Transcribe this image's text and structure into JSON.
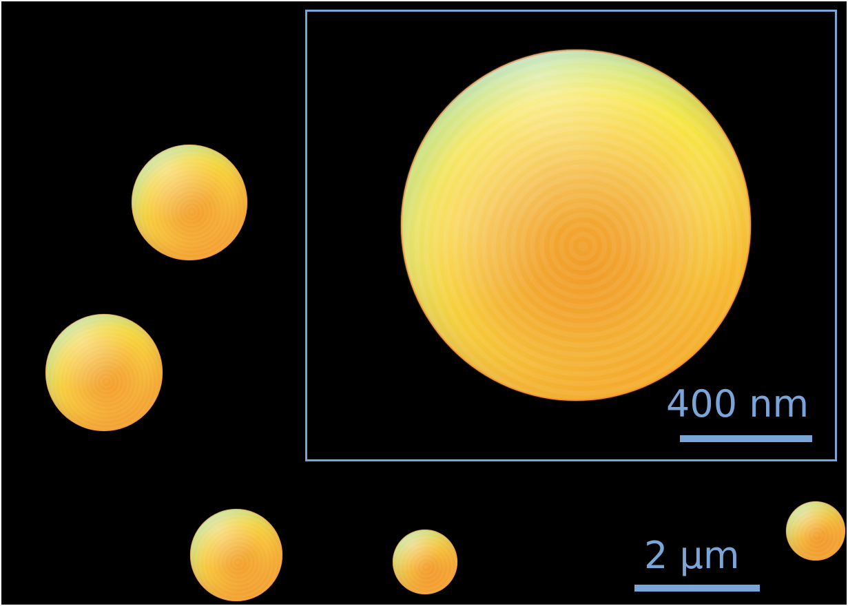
{
  "image": {
    "background_color": "#000000",
    "accent_color": "#7aa5d8",
    "particle_colors": [
      "#f39a2a",
      "#f8dc39",
      "#7eb4e6"
    ]
  },
  "scalebars": {
    "inset": "400 nm",
    "main": "2 μm"
  }
}
